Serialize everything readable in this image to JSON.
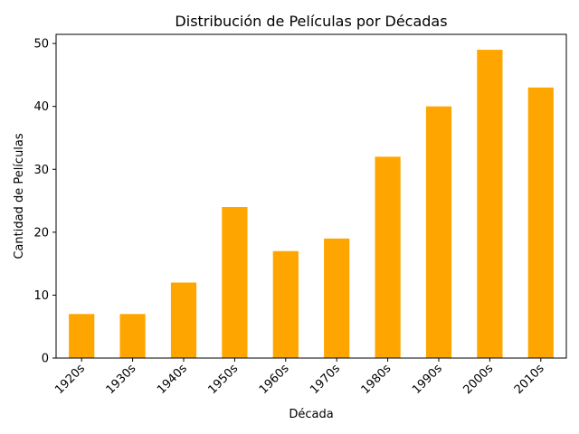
{
  "chart_data": {
    "type": "bar",
    "title": "Distribución de Películas por Décadas",
    "xlabel": "Década",
    "ylabel": "Cantidad de Películas",
    "categories": [
      "1920s",
      "1930s",
      "1940s",
      "1950s",
      "1960s",
      "1970s",
      "1980s",
      "1990s",
      "2000s",
      "2010s"
    ],
    "values": [
      7,
      7,
      12,
      24,
      17,
      19,
      32,
      40,
      49,
      43
    ],
    "ylim": [
      0,
      51.45
    ],
    "yticks": [
      0,
      10,
      20,
      30,
      40,
      50
    ],
    "grid": false,
    "bar_color": "#FFA500"
  }
}
